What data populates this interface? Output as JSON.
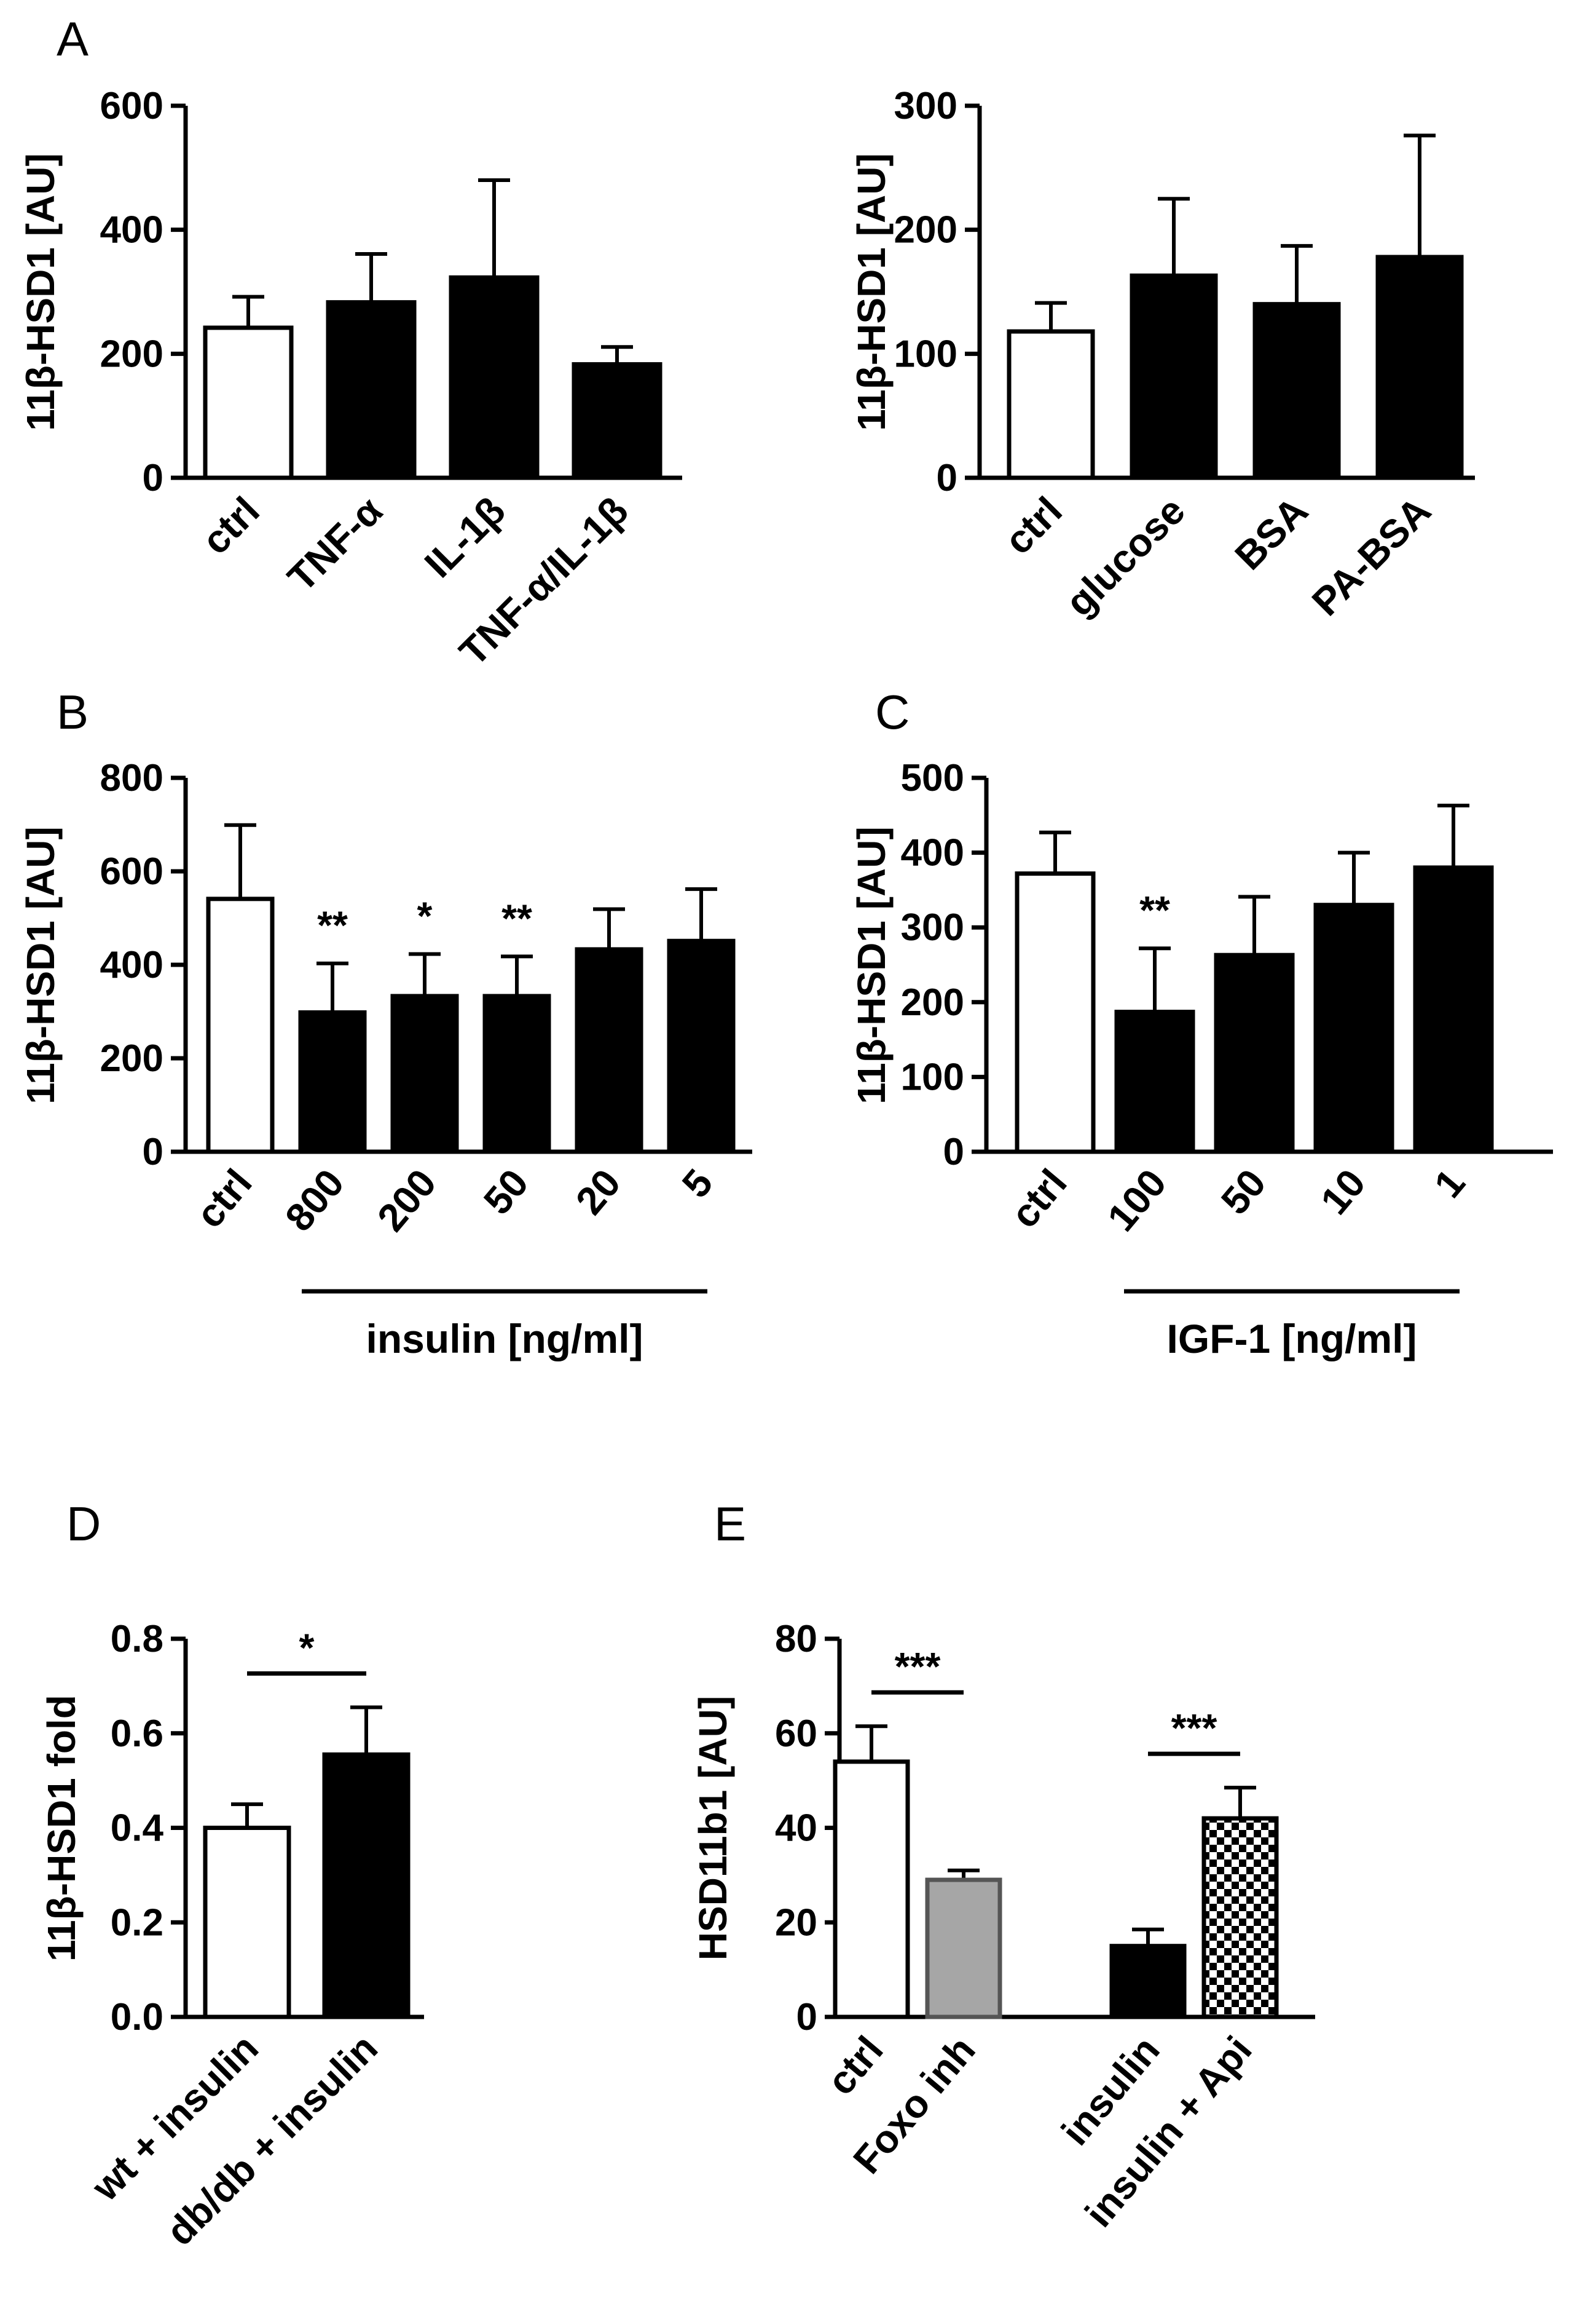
{
  "figure": {
    "panels": [
      {
        "id": "A",
        "label": "A"
      },
      {
        "id": "B",
        "label": "B"
      },
      {
        "id": "C",
        "label": "C"
      },
      {
        "id": "D",
        "label": "D"
      },
      {
        "id": "E",
        "label": "E"
      }
    ]
  },
  "chart_data": [
    {
      "id": "A1",
      "panel": "A",
      "type": "bar",
      "ylabel": "11β-HSD1 [AU]",
      "ylim": [
        0,
        600
      ],
      "yticks": [
        0,
        200,
        400,
        600
      ],
      "categories": [
        "ctrl",
        "TNF-α",
        "IL-1β",
        "TNF-α/IL-1β"
      ],
      "values": [
        242,
        283,
        323,
        183
      ],
      "errors": [
        50,
        78,
        157,
        28
      ],
      "fills": [
        "white",
        "black",
        "black",
        "black"
      ],
      "significance": [],
      "group_label": null
    },
    {
      "id": "A2",
      "panel": "A",
      "type": "bar",
      "ylabel": "11β-HSD1 [AU]",
      "ylim": [
        0,
        300
      ],
      "yticks": [
        0,
        100,
        200,
        300
      ],
      "categories": [
        "ctrl",
        "glucose",
        "BSA",
        "PA-BSA"
      ],
      "values": [
        118,
        163,
        140,
        178
      ],
      "errors": [
        23,
        62,
        47,
        98
      ],
      "fills": [
        "white",
        "black",
        "black",
        "black"
      ],
      "significance": [],
      "group_label": null
    },
    {
      "id": "B",
      "panel": "B",
      "type": "bar",
      "ylabel": "11β-HSD1 [AU]",
      "ylim": [
        0,
        800
      ],
      "yticks": [
        0,
        200,
        400,
        600,
        800
      ],
      "categories": [
        "ctrl",
        "800",
        "200",
        "50",
        "20",
        "5"
      ],
      "values": [
        541,
        298,
        333,
        333,
        433,
        451
      ],
      "errors": [
        158,
        105,
        90,
        85,
        86,
        111
      ],
      "fills": [
        "white",
        "black",
        "black",
        "black",
        "black",
        "black"
      ],
      "significance": [
        {
          "bar": 1,
          "text": "**"
        },
        {
          "bar": 2,
          "text": "*"
        },
        {
          "bar": 3,
          "text": "**"
        }
      ],
      "group_label": {
        "text": "insulin [ng/ml]",
        "from": 1,
        "to": 5
      }
    },
    {
      "id": "C",
      "panel": "C",
      "type": "bar",
      "ylabel": "11β-HSD1 [AU]",
      "ylim": [
        0,
        500
      ],
      "yticks": [
        0,
        100,
        200,
        300,
        400,
        500
      ],
      "categories": [
        "ctrl",
        "100",
        "50",
        "10",
        "1"
      ],
      "values": [
        372,
        187,
        263,
        330,
        380
      ],
      "errors": [
        55,
        85,
        78,
        70,
        83
      ],
      "fills": [
        "white",
        "black",
        "black",
        "black",
        "black"
      ],
      "significance": [
        {
          "bar": 1,
          "text": "**"
        }
      ],
      "group_label": {
        "text": "IGF-1 [ng/ml]",
        "from": 1,
        "to": 4
      }
    },
    {
      "id": "D",
      "panel": "D",
      "type": "bar",
      "ylabel": "11β-HSD1 fold",
      "ylim": [
        0,
        0.8
      ],
      "yticks": [
        0.0,
        0.2,
        0.4,
        0.6,
        0.8
      ],
      "tick_decimals": 1,
      "categories": [
        "wt + insulin",
        "db/db + insulin"
      ],
      "values": [
        0.4,
        0.555
      ],
      "errors": [
        0.05,
        0.1
      ],
      "fills": [
        "white",
        "black"
      ],
      "significance": [],
      "brackets": [
        {
          "from": 0,
          "to": 1,
          "text": "*"
        }
      ],
      "group_label": null
    },
    {
      "id": "E",
      "panel": "E",
      "type": "bar",
      "ylabel": "HSD11b1 [AU]",
      "ylim": [
        0,
        80
      ],
      "yticks": [
        0,
        20,
        40,
        60,
        80
      ],
      "categories": [
        "ctrl",
        "Foxo inh",
        "insulin",
        "insulin + Api"
      ],
      "values": [
        54,
        29,
        15,
        42
      ],
      "errors": [
        7.5,
        2.0,
        3.5,
        6.5
      ],
      "fills": [
        "white",
        "gray",
        "black",
        "checker"
      ],
      "positions": [
        0,
        1,
        3,
        4
      ],
      "significance": [],
      "brackets": [
        {
          "from": 0,
          "to": 1,
          "text": "***"
        },
        {
          "from": 2,
          "to": 3,
          "text": "***"
        }
      ],
      "group_label": null
    }
  ]
}
